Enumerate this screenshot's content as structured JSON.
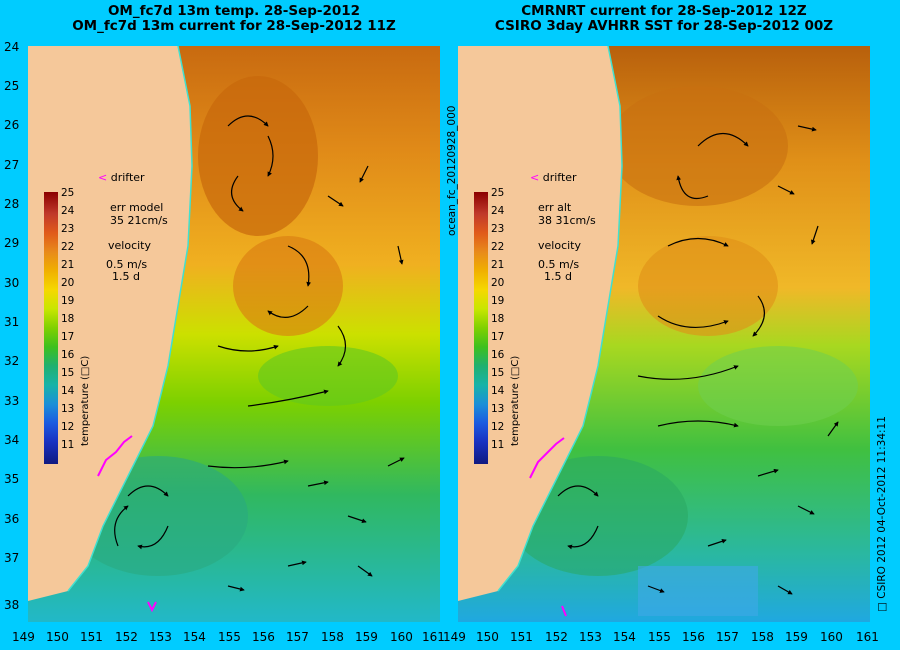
{
  "titles": {
    "left_line1": "OM_fc7d 13m temp. 28-Sep-2012",
    "left_line2": "OM_fc7d 13m current for 28-Sep-2012 11Z",
    "right_line1": "CMRNRT current for 28-Sep-2012 12Z",
    "right_line2": "CSIRO 3day AVHRR SST for 28-Sep-2012 00Z"
  },
  "y_axis_labels": [
    "24",
    "25",
    "26",
    "27",
    "28",
    "29",
    "30",
    "31",
    "32",
    "33",
    "34",
    "35",
    "36",
    "37",
    "38"
  ],
  "x_axis_labels": [
    "149",
    "150",
    "151",
    "152",
    "153",
    "154",
    "155",
    "156",
    "157",
    "158",
    "159",
    "160",
    "161"
  ],
  "left_panel": {
    "drifter_label": "drifter",
    "err_line1": "err model",
    "err_line2": "35 21cm/s",
    "velocity_label": "velocity",
    "velocity_scale1": "0.5 m/s",
    "velocity_scale2": "1.5 d",
    "colorbar_label": "temperature (□C)"
  },
  "right_panel": {
    "drifter_label": "drifter",
    "err_line1": "err alt",
    "err_line2": "38 31cm/s",
    "velocity_label": "velocity",
    "velocity_scale1": "0.5 m/s",
    "velocity_scale2": "1.5 d",
    "colorbar_label": "temperature (□C)"
  },
  "colorbar_ticks": [
    "25",
    "24",
    "23",
    "22",
    "21",
    "20",
    "19",
    "18",
    "17",
    "16",
    "15",
    "14",
    "13",
    "12",
    "11"
  ],
  "side_label": "ocean_fc_20120928_000",
  "credit": "□ CSIRO 2012   04-Oct-2012 11:34:11",
  "colors": {
    "background": "#00ccff",
    "land": "#f5c89a",
    "drifter": "#ff00ff"
  }
}
